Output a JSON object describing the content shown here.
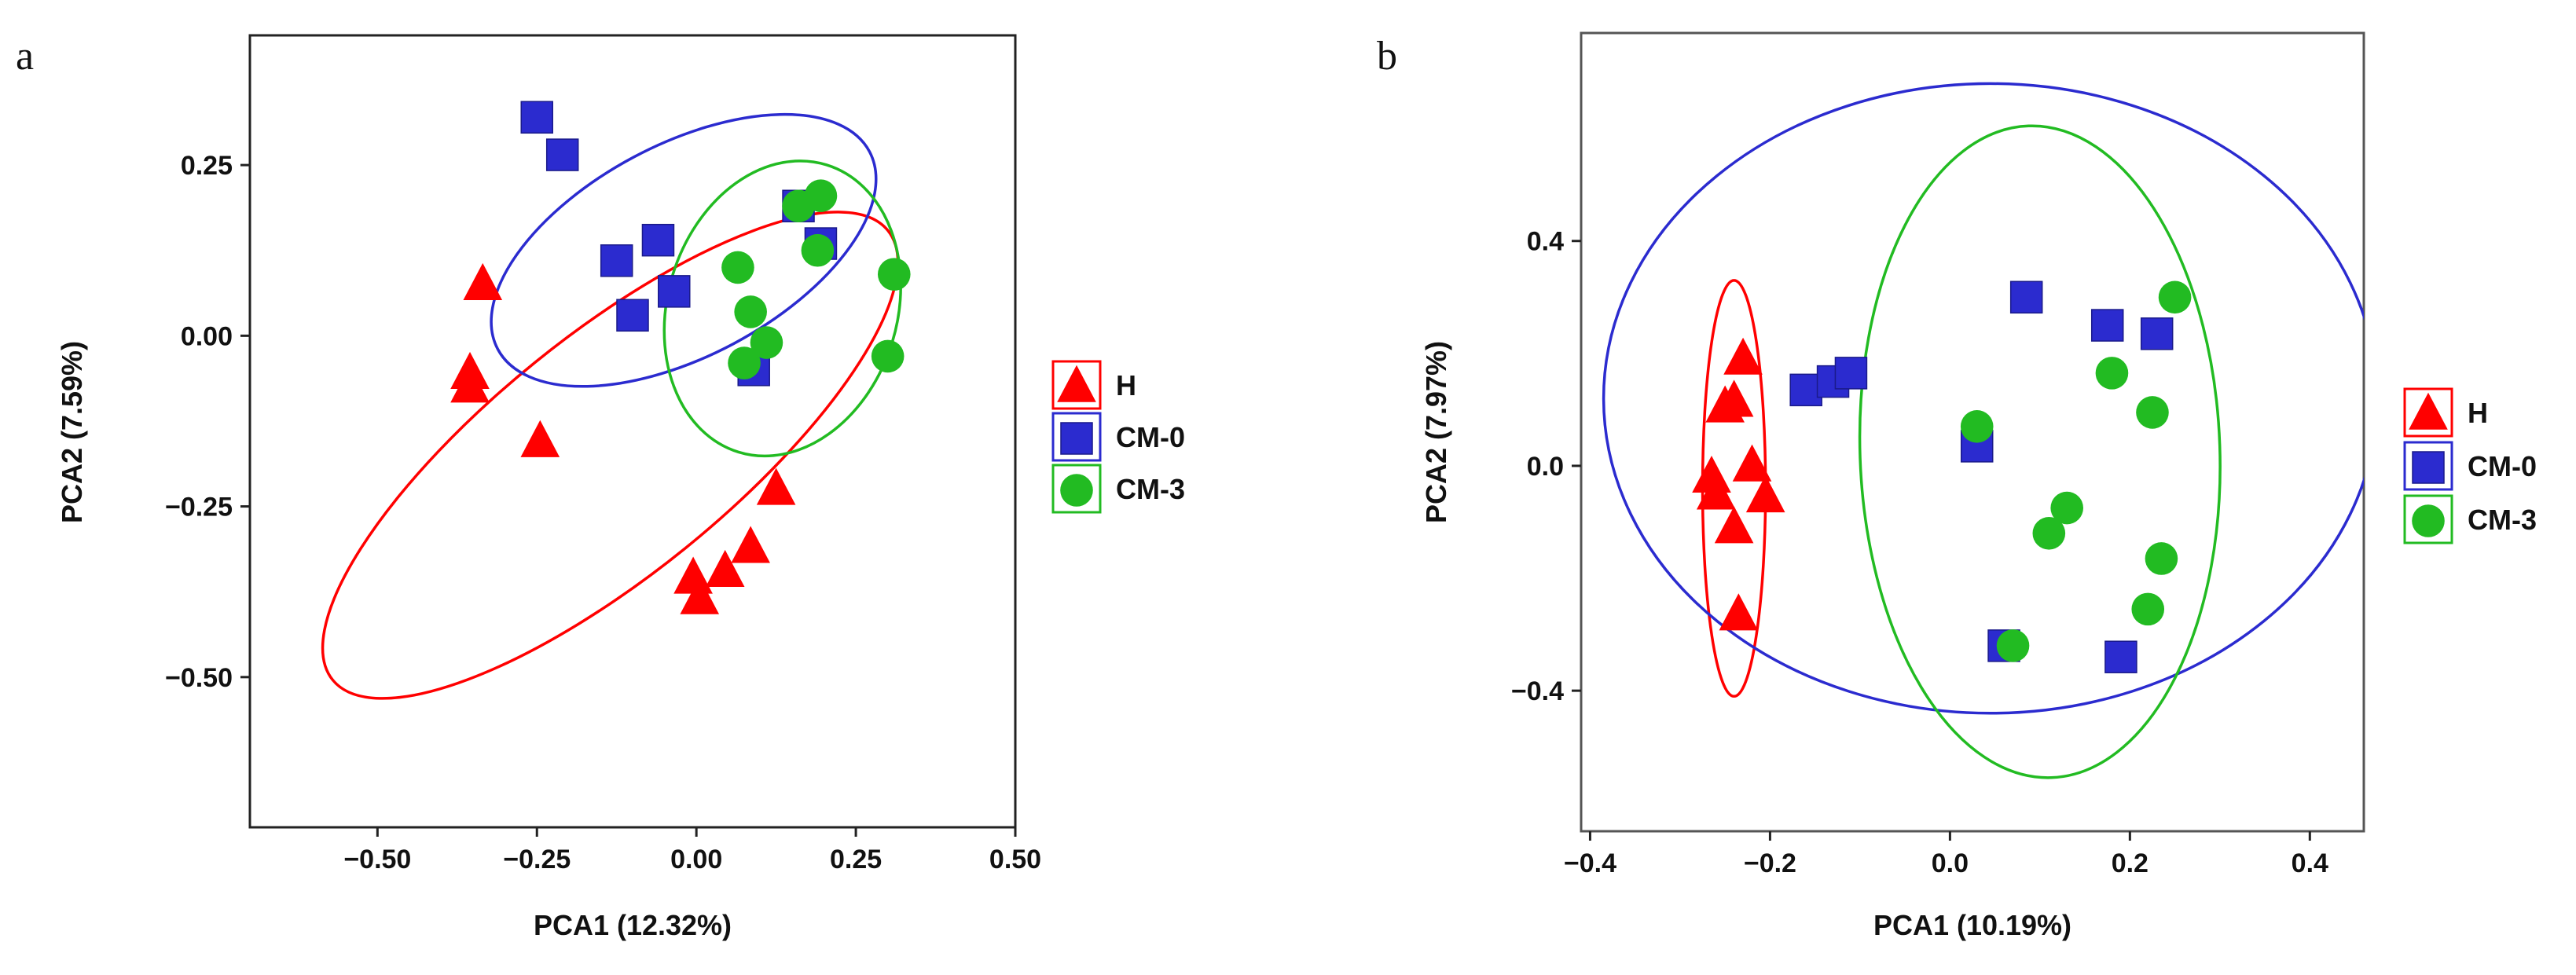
{
  "chart_data": [
    {
      "type": "scatter",
      "panel_label": "a",
      "title": "",
      "xlabel": "PCA1 (12.32%)",
      "ylabel": "PCA2 (7.59%)",
      "xlim": [
        -0.7,
        0.5
      ],
      "ylim": [
        -0.72,
        0.44
      ],
      "xticks": [
        -0.5,
        -0.25,
        0.0,
        0.25,
        0.5
      ],
      "xtick_labels": [
        "−0.50",
        "−0.25",
        "0.00",
        "0.25",
        "0.50"
      ],
      "yticks": [
        0.25,
        0.0,
        -0.25,
        -0.5
      ],
      "ytick_labels": [
        "0.25",
        "0.00",
        "−0.25",
        "−0.50"
      ],
      "legend_position": "right",
      "series": [
        {
          "name": "H",
          "marker": "triangle",
          "color": "#ff0000",
          "points": [
            [
              -0.335,
              0.075
            ],
            [
              -0.355,
              -0.055
            ],
            [
              -0.355,
              -0.075
            ],
            [
              -0.245,
              -0.155
            ],
            [
              -0.005,
              -0.355
            ],
            [
              0.005,
              -0.385
            ],
            [
              0.045,
              -0.345
            ],
            [
              0.085,
              -0.31
            ],
            [
              0.125,
              -0.225
            ]
          ],
          "ellipse": {
            "center": [
              -0.135,
              -0.175
            ],
            "rx": 0.56,
            "ry": 0.175,
            "angle_deg": -39
          }
        },
        {
          "name": "CM-0",
          "marker": "square",
          "color": "#2b2bcf",
          "points": [
            [
              -0.25,
              0.32
            ],
            [
              -0.21,
              0.265
            ],
            [
              -0.125,
              0.11
            ],
            [
              -0.06,
              0.14
            ],
            [
              -0.1,
              0.03
            ],
            [
              -0.035,
              0.065
            ],
            [
              0.09,
              -0.05
            ],
            [
              0.16,
              0.19
            ],
            [
              0.195,
              0.135
            ]
          ],
          "ellipse": {
            "center": [
              -0.02,
              0.125
            ],
            "rx": 0.33,
            "ry": 0.155,
            "angle_deg": -28
          }
        },
        {
          "name": "CM-3",
          "marker": "circle",
          "color": "#22bb22",
          "points": [
            [
              0.065,
              0.1
            ],
            [
              0.085,
              0.035
            ],
            [
              0.11,
              -0.01
            ],
            [
              0.075,
              -0.04
            ],
            [
              0.16,
              0.19
            ],
            [
              0.195,
              0.205
            ],
            [
              0.19,
              0.125
            ],
            [
              0.31,
              0.09
            ],
            [
              0.3,
              -0.03
            ]
          ],
          "ellipse": {
            "center": [
              0.135,
              0.04
            ],
            "rx": 0.18,
            "ry": 0.22,
            "angle_deg": 17
          }
        }
      ]
    },
    {
      "type": "scatter",
      "panel_label": "b",
      "title": "",
      "xlabel": "PCA1 (10.19%)",
      "ylabel": "PCA2 (7.97%)",
      "xlim": [
        -0.41,
        0.46
      ],
      "ylim": [
        -0.65,
        0.77
      ],
      "xticks": [
        -0.4,
        -0.2,
        0.0,
        0.2,
        0.4
      ],
      "xtick_labels": [
        "−0.4",
        "−0.2",
        "0.0",
        "0.2",
        "0.4"
      ],
      "yticks": [
        0.4,
        0.0,
        -0.4
      ],
      "ytick_labels": [
        "0.4",
        "0.0",
        "−0.4"
      ],
      "legend_position": "right",
      "series": [
        {
          "name": "H",
          "marker": "triangle",
          "color": "#ff0000",
          "points": [
            [
              -0.23,
              0.19
            ],
            [
              -0.24,
              0.115
            ],
            [
              -0.25,
              0.105
            ],
            [
              -0.265,
              -0.02
            ],
            [
              -0.26,
              -0.05
            ],
            [
              -0.24,
              -0.11
            ],
            [
              -0.22,
              0.0
            ],
            [
              -0.205,
              -0.055
            ],
            [
              -0.235,
              -0.265
            ]
          ],
          "ellipse": {
            "center": [
              -0.24,
              -0.04
            ],
            "rx": 0.035,
            "ry": 0.37,
            "angle_deg": 0
          }
        },
        {
          "name": "CM-0",
          "marker": "square",
          "color": "#2b2bcf",
          "points": [
            [
              -0.16,
              0.135
            ],
            [
              -0.13,
              0.15
            ],
            [
              -0.11,
              0.165
            ],
            [
              0.03,
              0.035
            ],
            [
              0.085,
              0.3
            ],
            [
              0.175,
              0.25
            ],
            [
              0.23,
              0.235
            ],
            [
              0.06,
              -0.32
            ],
            [
              0.19,
              -0.34
            ]
          ],
          "ellipse": {
            "center": [
              0.045,
              0.12
            ],
            "rx": 0.43,
            "ry": 0.56,
            "angle_deg": 0
          }
        },
        {
          "name": "CM-3",
          "marker": "circle",
          "color": "#22bb22",
          "points": [
            [
              0.03,
              0.07
            ],
            [
              0.13,
              -0.075
            ],
            [
              0.11,
              -0.12
            ],
            [
              0.07,
              -0.32
            ],
            [
              0.18,
              0.165
            ],
            [
              0.225,
              0.095
            ],
            [
              0.25,
              0.3
            ],
            [
              0.235,
              -0.165
            ],
            [
              0.22,
              -0.255
            ]
          ],
          "ellipse": {
            "center": [
              0.1,
              0.025
            ],
            "rx": 0.2,
            "ry": 0.58,
            "angle_deg": -2
          }
        }
      ]
    }
  ]
}
